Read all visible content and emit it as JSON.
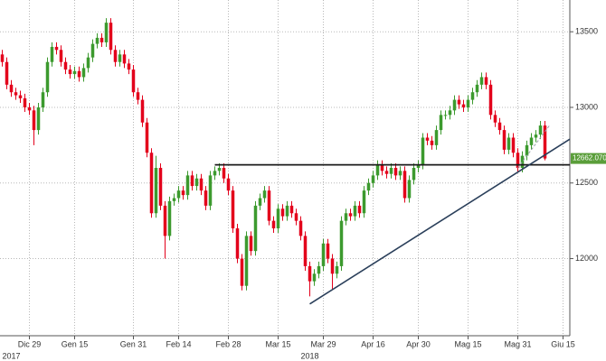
{
  "chart_data": {
    "type": "candlestick",
    "up_color": "#3c9a2e",
    "down_color": "#e3001b",
    "xlim": [
      -0.5,
      125.5
    ],
    "ylim": [
      11490,
      13710
    ],
    "yticks": [
      12000,
      12500,
      13000,
      13500
    ],
    "xticks": [
      {
        "value": 6,
        "label": "Dic 29"
      },
      {
        "value": 16,
        "label": "Gen 15"
      },
      {
        "value": 29,
        "label": "Gen 31"
      },
      {
        "value": 39,
        "label": "Feb 14"
      },
      {
        "value": 50,
        "label": "Feb 28"
      },
      {
        "value": 61,
        "label": "Mar 15"
      },
      {
        "value": 71,
        "label": "Mar 29"
      },
      {
        "value": 82,
        "label": "Apr 16"
      },
      {
        "value": 92,
        "label": "Apr 30"
      },
      {
        "value": 103,
        "label": "Mag 15"
      },
      {
        "value": 114,
        "label": "Mag 31"
      },
      {
        "value": 124,
        "label": "Giu 15"
      }
    ],
    "year_ticks": [
      {
        "value": 0,
        "label": "2017"
      },
      {
        "value": 66,
        "label": "2018"
      }
    ],
    "grid": true,
    "open": [
      13350,
      13300,
      13150,
      13100,
      13080,
      13060,
      13000,
      12980,
      12850,
      13000,
      13100,
      13300,
      13400,
      13380,
      13300,
      13250,
      13220,
      13240,
      13200,
      13260,
      13330,
      13420,
      13460,
      13430,
      13560,
      13380,
      13300,
      13350,
      13290,
      13250,
      13100,
      13050,
      12900,
      12700,
      12300,
      12600,
      12350,
      12150,
      12380,
      12400,
      12450,
      12420,
      12550,
      12480,
      12530,
      12450,
      12350,
      12550,
      12580,
      12600,
      12530,
      12450,
      12200,
      12000,
      11820,
      12150,
      12050,
      12350,
      12400,
      12450,
      12250,
      12200,
      12330,
      12280,
      12350,
      12300,
      12250,
      12150,
      11950,
      11850,
      11900,
      11950,
      12100,
      12000,
      11900,
      11950,
      12250,
      12300,
      12280,
      12350,
      12300,
      12450,
      12500,
      12550,
      12620,
      12580,
      12560,
      12600,
      12550,
      12580,
      12400,
      12520,
      12600,
      12620,
      12800,
      12780,
      12750,
      12850,
      12950,
      12950,
      12980,
      13050,
      13020,
      13000,
      13050,
      13100,
      13150,
      13200,
      13150,
      12950,
      12900,
      12850,
      12720,
      12800,
      12700,
      12600,
      12680,
      12750,
      12800,
      12820,
      12880
    ],
    "high": [
      13380,
      13330,
      13180,
      13130,
      13110,
      13090,
      13030,
      13010,
      13030,
      13130,
      13330,
      13430,
      13430,
      13410,
      13330,
      13280,
      13270,
      13270,
      13290,
      13360,
      13450,
      13490,
      13490,
      13590,
      13590,
      13410,
      13380,
      13380,
      13320,
      13280,
      13130,
      13080,
      12930,
      12730,
      12680,
      12630,
      12380,
      12410,
      12430,
      12480,
      12480,
      12580,
      12580,
      12560,
      12560,
      12480,
      12580,
      12610,
      12630,
      12630,
      12560,
      12480,
      12230,
      12030,
      12180,
      12180,
      12380,
      12430,
      12480,
      12480,
      12280,
      12360,
      12360,
      12380,
      12380,
      12330,
      12280,
      12180,
      11980,
      11930,
      11980,
      12130,
      12130,
      12030,
      11980,
      12280,
      12330,
      12330,
      12380,
      12380,
      12480,
      12530,
      12580,
      12650,
      12650,
      12610,
      12630,
      12630,
      12610,
      12610,
      12550,
      12630,
      12650,
      12830,
      12830,
      12810,
      12880,
      12980,
      12980,
      13010,
      13080,
      13080,
      13050,
      13080,
      13130,
      13180,
      13230,
      13230,
      13180,
      12980,
      12930,
      12880,
      12830,
      12830,
      12730,
      12710,
      12780,
      12830,
      12850,
      12910,
      12910
    ],
    "low": [
      13270,
      13120,
      13070,
      13050,
      13030,
      12970,
      12950,
      12750,
      12820,
      12970,
      13070,
      13270,
      13350,
      13270,
      13220,
      13190,
      13190,
      13170,
      13170,
      13230,
      13300,
      13390,
      13400,
      13400,
      13350,
      13270,
      13270,
      13260,
      13220,
      13070,
      13020,
      12870,
      12670,
      12270,
      12270,
      12320,
      12000,
      12120,
      12350,
      12370,
      12390,
      12390,
      12450,
      12450,
      12420,
      12320,
      12320,
      12520,
      12550,
      12500,
      12420,
      12170,
      11970,
      11790,
      11790,
      12020,
      12020,
      12320,
      12370,
      12220,
      12170,
      12170,
      12250,
      12250,
      12270,
      12220,
      12120,
      11920,
      11750,
      11820,
      11870,
      11920,
      11970,
      11800,
      11870,
      11920,
      12220,
      12250,
      12250,
      12270,
      12270,
      12420,
      12470,
      12520,
      12550,
      12530,
      12530,
      12520,
      12520,
      12370,
      12370,
      12490,
      12570,
      12590,
      12750,
      12720,
      12720,
      12820,
      12920,
      12920,
      12950,
      12990,
      12970,
      12970,
      13020,
      13070,
      13120,
      13120,
      12920,
      12870,
      12820,
      12690,
      12690,
      12670,
      12570,
      12570,
      12650,
      12720,
      12770,
      12790,
      12650
    ],
    "close": [
      13300,
      13150,
      13100,
      13080,
      13060,
      13000,
      12980,
      12850,
      13000,
      13100,
      13300,
      13400,
      13380,
      13300,
      13250,
      13220,
      13240,
      13200,
      13260,
      13330,
      13420,
      13460,
      13430,
      13560,
      13380,
      13300,
      13350,
      13290,
      13250,
      13100,
      13050,
      12900,
      12700,
      12300,
      12600,
      12350,
      12150,
      12380,
      12400,
      12450,
      12420,
      12550,
      12480,
      12530,
      12450,
      12350,
      12550,
      12580,
      12600,
      12530,
      12450,
      12200,
      12000,
      11820,
      12150,
      12050,
      12350,
      12400,
      12450,
      12250,
      12200,
      12330,
      12280,
      12350,
      12300,
      12250,
      12150,
      11950,
      11850,
      11900,
      11950,
      12100,
      12000,
      11900,
      11950,
      12250,
      12300,
      12280,
      12350,
      12300,
      12450,
      12500,
      12550,
      12620,
      12580,
      12560,
      12600,
      12550,
      12580,
      12400,
      12520,
      12600,
      12620,
      12800,
      12780,
      12750,
      12850,
      12950,
      12950,
      12980,
      13050,
      13020,
      13000,
      13050,
      13100,
      13150,
      13200,
      13150,
      12950,
      12900,
      12850,
      12720,
      12800,
      12700,
      12600,
      12680,
      12750,
      12800,
      12820,
      12880,
      12662.0703
    ],
    "last_price": {
      "value": 12662.0703,
      "label": "12662.0703",
      "color": "#5a9e3a"
    },
    "support_line": {
      "start": 47,
      "end": 125.5,
      "value": 12620,
      "color": "#1b1b1b"
    },
    "trend_line": {
      "points": [
        [
          68,
          11700
        ],
        [
          125.5,
          12790
        ]
      ],
      "color": "#2a3f5a"
    },
    "channel_line": {
      "points": [
        [
          114,
          12600
        ],
        [
          121,
          12880
        ]
      ],
      "color": "#9aa3ad"
    }
  }
}
